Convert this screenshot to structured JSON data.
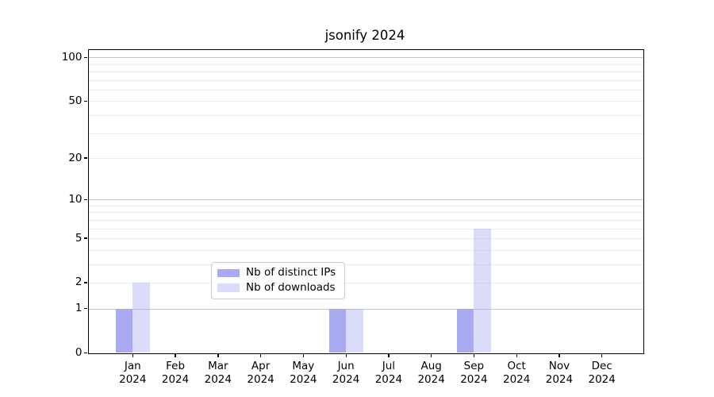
{
  "chart_data": {
    "type": "bar",
    "title": "jsonify 2024",
    "year": "2024",
    "categories": [
      "Jan",
      "Feb",
      "Mar",
      "Apr",
      "May",
      "Jun",
      "Jul",
      "Aug",
      "Sep",
      "Oct",
      "Nov",
      "Dec"
    ],
    "series": [
      {
        "name": "Nb of distinct IPs",
        "color": "#a9a9f2",
        "alpha": 1,
        "values": [
          1,
          0,
          0,
          0,
          0,
          1,
          0,
          0,
          1,
          0,
          0,
          0
        ]
      },
      {
        "name": "Nb of downloads",
        "color": "#a9a9f2",
        "alpha": 0.42,
        "values": [
          2,
          0,
          0,
          0,
          0,
          1,
          0,
          0,
          6,
          0,
          0,
          0
        ]
      }
    ],
    "legend_entries": [
      "Nb of distinct IPs",
      "Nb of downloads"
    ],
    "legend_swatch_colors": [
      "#a9a9f2",
      "#dcdcf8"
    ],
    "yscale": "log1p",
    "yticks": [
      0,
      1,
      2,
      5,
      10,
      20,
      50,
      100
    ],
    "ylim": [
      0,
      112.5
    ],
    "xlabel": "",
    "ylabel": "",
    "grid": {
      "minor_values": [
        2,
        3,
        4,
        5,
        6,
        7,
        8,
        9,
        20,
        30,
        40,
        50,
        60,
        70,
        80,
        90
      ],
      "major_values": [
        1,
        10,
        100
      ],
      "minor_color": "#ececec",
      "major_color": "#c6c6c6"
    },
    "axis_color": "#000000",
    "background_color": "#ffffff"
  }
}
